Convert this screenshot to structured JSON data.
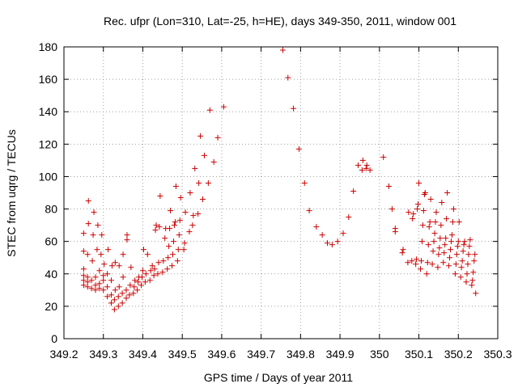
{
  "chart_data": {
    "type": "scatter",
    "title": "Rec. ufpr (Lon=310, Lat=-25, h=HE), days 349-350, 2011, window 001",
    "xlabel": "GPS time / Days of year 2011",
    "ylabel": "STEC from uqrg / TECUs",
    "xlim": [
      349.2,
      350.3
    ],
    "ylim": [
      0,
      180
    ],
    "x_ticks": [
      349.2,
      349.3,
      349.4,
      349.5,
      349.6,
      349.7,
      349.8,
      349.9,
      350,
      350.1,
      350.2,
      350.3
    ],
    "x_tick_labels": [
      "349.2",
      "349.3",
      "349.4",
      "349.5",
      "349.6",
      "349.7",
      "349.8",
      "349.9",
      "350",
      "350.1",
      "350.2",
      "350.3"
    ],
    "y_ticks": [
      0,
      20,
      40,
      60,
      80,
      100,
      120,
      140,
      160,
      180
    ],
    "y_tick_labels": [
      "0",
      "20",
      "40",
      "60",
      "80",
      "100",
      "120",
      "140",
      "160",
      "180"
    ],
    "grid": true,
    "marker": "+",
    "marker_color": "#cc0000",
    "points": [
      [
        349.25,
        33
      ],
      [
        349.25,
        36
      ],
      [
        349.25,
        39
      ],
      [
        349.25,
        43
      ],
      [
        349.25,
        54
      ],
      [
        349.25,
        65
      ],
      [
        349.26,
        32
      ],
      [
        349.26,
        35
      ],
      [
        349.26,
        38
      ],
      [
        349.26,
        52
      ],
      [
        349.262,
        71
      ],
      [
        349.262,
        85
      ],
      [
        349.27,
        31
      ],
      [
        349.27,
        36
      ],
      [
        349.272,
        48
      ],
      [
        349.274,
        64
      ],
      [
        349.276,
        78
      ],
      [
        349.28,
        30
      ],
      [
        349.28,
        33
      ],
      [
        349.28,
        38
      ],
      [
        349.284,
        55
      ],
      [
        349.286,
        70
      ],
      [
        349.29,
        31
      ],
      [
        349.29,
        34
      ],
      [
        349.29,
        42
      ],
      [
        349.294,
        52
      ],
      [
        349.296,
        64
      ],
      [
        349.3,
        30
      ],
      [
        349.3,
        36
      ],
      [
        349.3,
        39
      ],
      [
        349.302,
        46
      ],
      [
        349.31,
        26
      ],
      [
        349.31,
        32
      ],
      [
        349.31,
        40
      ],
      [
        349.312,
        55
      ],
      [
        349.32,
        22
      ],
      [
        349.32,
        27
      ],
      [
        349.32,
        36
      ],
      [
        349.322,
        45
      ],
      [
        349.328,
        18
      ],
      [
        349.328,
        24
      ],
      [
        349.33,
        30
      ],
      [
        349.33,
        47
      ],
      [
        349.338,
        20
      ],
      [
        349.338,
        26
      ],
      [
        349.34,
        32
      ],
      [
        349.34,
        45
      ],
      [
        349.348,
        22
      ],
      [
        349.348,
        28
      ],
      [
        349.35,
        38
      ],
      [
        349.35,
        52
      ],
      [
        349.358,
        25
      ],
      [
        349.358,
        30
      ],
      [
        349.36,
        61
      ],
      [
        349.36,
        64
      ],
      [
        349.366,
        27
      ],
      [
        349.368,
        33
      ],
      [
        349.37,
        44
      ],
      [
        349.376,
        28
      ],
      [
        349.378,
        32
      ],
      [
        349.38,
        36
      ],
      [
        349.386,
        30
      ],
      [
        349.388,
        35
      ],
      [
        349.39,
        38
      ],
      [
        349.396,
        33
      ],
      [
        349.398,
        38
      ],
      [
        349.4,
        42
      ],
      [
        349.402,
        55
      ],
      [
        349.406,
        35
      ],
      [
        349.408,
        40
      ],
      [
        349.412,
        52
      ],
      [
        349.418,
        36
      ],
      [
        349.42,
        42
      ],
      [
        349.424,
        45
      ],
      [
        349.428,
        39
      ],
      [
        349.43,
        43
      ],
      [
        349.432,
        67
      ],
      [
        349.434,
        70
      ],
      [
        349.438,
        40
      ],
      [
        349.44,
        47
      ],
      [
        349.442,
        69
      ],
      [
        349.444,
        88
      ],
      [
        349.45,
        41
      ],
      [
        349.452,
        48
      ],
      [
        349.456,
        62
      ],
      [
        349.458,
        68
      ],
      [
        349.462,
        43
      ],
      [
        349.464,
        50
      ],
      [
        349.466,
        57
      ],
      [
        349.468,
        68
      ],
      [
        349.47,
        79
      ],
      [
        349.474,
        45
      ],
      [
        349.476,
        52
      ],
      [
        349.478,
        60
      ],
      [
        349.48,
        70
      ],
      [
        349.482,
        72
      ],
      [
        349.484,
        94
      ],
      [
        349.488,
        48
      ],
      [
        349.49,
        55
      ],
      [
        349.492,
        64
      ],
      [
        349.494,
        73
      ],
      [
        349.496,
        87
      ],
      [
        349.504,
        55
      ],
      [
        349.506,
        59
      ],
      [
        349.508,
        78
      ],
      [
        349.518,
        66
      ],
      [
        349.52,
        90
      ],
      [
        349.526,
        70
      ],
      [
        349.528,
        76
      ],
      [
        349.532,
        105
      ],
      [
        349.54,
        77
      ],
      [
        349.542,
        96
      ],
      [
        349.546,
        125
      ],
      [
        349.552,
        86
      ],
      [
        349.556,
        113
      ],
      [
        349.566,
        96
      ],
      [
        349.57,
        141
      ],
      [
        349.58,
        109
      ],
      [
        349.59,
        124
      ],
      [
        349.605,
        143
      ],
      [
        349.755,
        178
      ],
      [
        349.768,
        161
      ],
      [
        349.782,
        142
      ],
      [
        349.796,
        117
      ],
      [
        349.81,
        96
      ],
      [
        349.822,
        79
      ],
      [
        349.84,
        69
      ],
      [
        349.855,
        64
      ],
      [
        349.868,
        59
      ],
      [
        349.88,
        58
      ],
      [
        349.894,
        60
      ],
      [
        349.908,
        65
      ],
      [
        349.922,
        75
      ],
      [
        349.934,
        91
      ],
      [
        349.946,
        107
      ],
      [
        349.956,
        104
      ],
      [
        349.958,
        110
      ],
      [
        349.966,
        105
      ],
      [
        349.968,
        107
      ],
      [
        349.976,
        104
      ],
      [
        350.01,
        112
      ],
      [
        350.024,
        94
      ],
      [
        350.032,
        80
      ],
      [
        350.04,
        66
      ],
      [
        350.04,
        68
      ],
      [
        350.058,
        53
      ],
      [
        350.06,
        55
      ],
      [
        350.072,
        47
      ],
      [
        350.074,
        78
      ],
      [
        350.082,
        48
      ],
      [
        350.084,
        74
      ],
      [
        350.086,
        77
      ],
      [
        350.092,
        46
      ],
      [
        350.094,
        49
      ],
      [
        350.096,
        80
      ],
      [
        350.098,
        83
      ],
      [
        350.1,
        96
      ],
      [
        350.104,
        43
      ],
      [
        350.106,
        48
      ],
      [
        350.108,
        60
      ],
      [
        350.11,
        70
      ],
      [
        350.112,
        79
      ],
      [
        350.114,
        89
      ],
      [
        350.116,
        90
      ],
      [
        350.12,
        40
      ],
      [
        350.122,
        47
      ],
      [
        350.124,
        58
      ],
      [
        350.126,
        69
      ],
      [
        350.128,
        72
      ],
      [
        350.13,
        86
      ],
      [
        350.134,
        46
      ],
      [
        350.136,
        54
      ],
      [
        350.138,
        60
      ],
      [
        350.14,
        65
      ],
      [
        350.142,
        72
      ],
      [
        350.144,
        78
      ],
      [
        350.148,
        44
      ],
      [
        350.15,
        52
      ],
      [
        350.152,
        56
      ],
      [
        350.154,
        62
      ],
      [
        350.156,
        70
      ],
      [
        350.158,
        84
      ],
      [
        350.162,
        47
      ],
      [
        350.164,
        53
      ],
      [
        350.166,
        58
      ],
      [
        350.168,
        62
      ],
      [
        350.17,
        74
      ],
      [
        350.172,
        90
      ],
      [
        350.176,
        45
      ],
      [
        350.178,
        50
      ],
      [
        350.18,
        55
      ],
      [
        350.182,
        60
      ],
      [
        350.184,
        64
      ],
      [
        350.186,
        72
      ],
      [
        350.188,
        80
      ],
      [
        350.192,
        40
      ],
      [
        350.194,
        46
      ],
      [
        350.196,
        52
      ],
      [
        350.198,
        57
      ],
      [
        350.2,
        60
      ],
      [
        350.202,
        72
      ],
      [
        350.206,
        38
      ],
      [
        350.208,
        44
      ],
      [
        350.21,
        48
      ],
      [
        350.212,
        54
      ],
      [
        350.214,
        58
      ],
      [
        350.216,
        60
      ],
      [
        350.22,
        35
      ],
      [
        350.222,
        40
      ],
      [
        350.224,
        46
      ],
      [
        350.226,
        52
      ],
      [
        350.228,
        57
      ],
      [
        350.23,
        61
      ],
      [
        350.234,
        33
      ],
      [
        350.236,
        36
      ],
      [
        350.238,
        41
      ],
      [
        350.24,
        48
      ],
      [
        350.242,
        52
      ],
      [
        350.244,
        28
      ]
    ]
  }
}
